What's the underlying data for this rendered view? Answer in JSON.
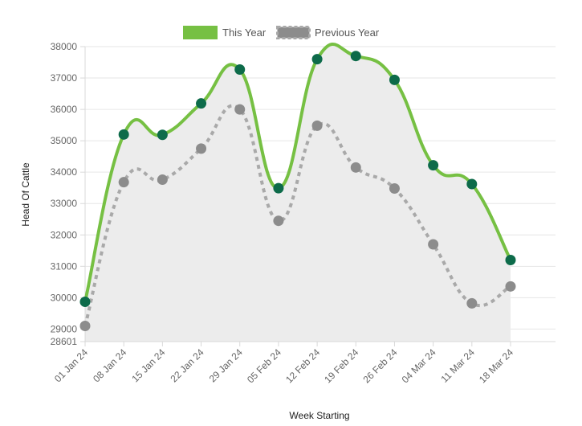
{
  "chart_data": {
    "type": "line",
    "title": "",
    "xlabel": "Week Starting",
    "ylabel": "Head Of Cattle",
    "categories": [
      "01 Jan 24",
      "08 Jan 24",
      "15 Jan 24",
      "22 Jan 24",
      "29 Jan 24",
      "05 Feb 24",
      "12 Feb 24",
      "19 Feb 24",
      "26 Feb 24",
      "04 Mar 24",
      "11 Mar 24",
      "18 Mar 24"
    ],
    "y_ticks": [
      28601,
      29000,
      30000,
      31000,
      32000,
      33000,
      34000,
      35000,
      36000,
      37000,
      38000
    ],
    "ylim": [
      28601,
      38000
    ],
    "grid": true,
    "legend_position": "top",
    "series": [
      {
        "name": "This Year",
        "color": "#76c043",
        "marker_color": "#0d6b4a",
        "line_style": "solid",
        "fill": "#ececec",
        "values": [
          29870,
          35200,
          35190,
          36190,
          37270,
          33490,
          37600,
          37700,
          36940,
          34220,
          33620,
          31200
        ]
      },
      {
        "name": "Previous Year",
        "color": "#a9a9a9",
        "marker_color": "#8c8c8c",
        "line_style": "dotted",
        "values": [
          29100,
          33680,
          33760,
          34750,
          36000,
          32450,
          35480,
          34150,
          33480,
          31700,
          29820,
          30360
        ]
      }
    ]
  }
}
